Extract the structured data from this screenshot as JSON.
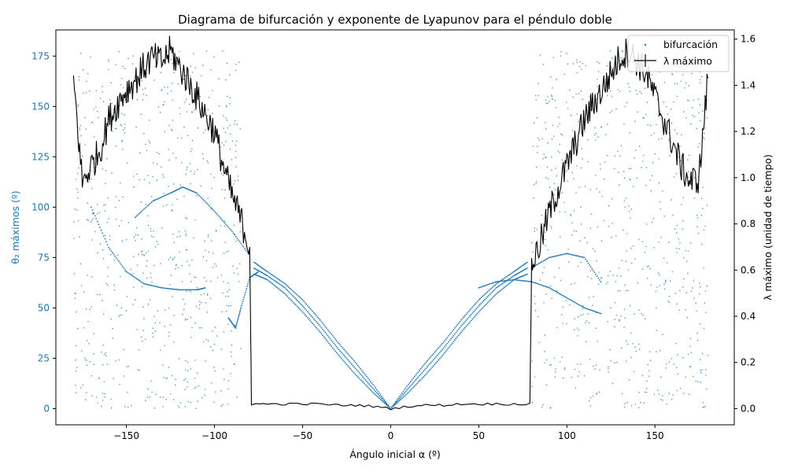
{
  "chart_data": {
    "type": "scatter",
    "title": "Diagrama de bifurcación y exponente de Lyapunov para el péndulo doble",
    "xlabel": "Ángulo inicial α (º)",
    "ylabel_left": "θ₂ máximos (º)",
    "ylabel_right": "λ máximo (unidad de tiempo)",
    "xlim": [
      -190,
      195
    ],
    "ylim_left": [
      -8,
      188
    ],
    "ylim_right": [
      -0.07,
      1.64
    ],
    "xticks": [
      -150,
      -100,
      -50,
      0,
      50,
      100,
      150
    ],
    "yticks_left": [
      0,
      25,
      50,
      75,
      100,
      125,
      150,
      175
    ],
    "yticks_right": [
      0.0,
      0.2,
      0.4,
      0.6,
      0.8,
      1.0,
      1.2,
      1.4,
      1.6
    ],
    "grid": false,
    "legend_position": "top-right",
    "colors": {
      "bifurcation": "#1f77b4",
      "lyapunov": "#000000",
      "left_axis": "#1f77b4"
    },
    "series": [
      {
        "name": "bifurcación",
        "kind": "scatter",
        "axis": "left",
        "branches": [
          {
            "x": [
              0,
              10,
              20,
              30,
              40,
              50,
              60,
              70,
              78
            ],
            "y": [
              0,
              8,
              17,
              27,
              38,
              48,
              57,
              64,
              67
            ]
          },
          {
            "x": [
              0,
              10,
              20,
              30,
              40,
              50,
              60,
              70,
              78
            ],
            "y": [
              0,
              10,
              20,
              30,
              41,
              51,
              60,
              66,
              70
            ]
          },
          {
            "x": [
              0,
              10,
              20,
              30,
              40,
              50,
              60,
              70,
              78
            ],
            "y": [
              0,
              12,
              23,
              33,
              44,
              54,
              62,
              68,
              73
            ]
          },
          {
            "x": [
              0,
              -10,
              -20,
              -30,
              -40,
              -50,
              -60,
              -70,
              -78
            ],
            "y": [
              0,
              8,
              17,
              27,
              38,
              48,
              57,
              64,
              67
            ]
          },
          {
            "x": [
              0,
              -10,
              -20,
              -30,
              -40,
              -50,
              -60,
              -70,
              -78
            ],
            "y": [
              0,
              10,
              20,
              30,
              41,
              51,
              60,
              66,
              70
            ]
          },
          {
            "x": [
              0,
              -10,
              -20,
              -30,
              -40,
              -50,
              -60,
              -70,
              -78
            ],
            "y": [
              0,
              12,
              23,
              33,
              44,
              54,
              62,
              68,
              73
            ]
          },
          {
            "x": [
              50,
              60,
              70,
              80,
              90,
              100,
              110,
              120
            ],
            "y": [
              60,
              63,
              64,
              63,
              60,
              55,
              50,
              47
            ]
          },
          {
            "x": [
              80,
              90,
              100,
              110,
              120
            ],
            "y": [
              70,
              75,
              77,
              75,
              62
            ]
          },
          {
            "x": [
              -145,
              -135,
              -125,
              -118,
              -110,
              -100,
              -90,
              -80
            ],
            "y": [
              95,
              103,
              107,
              110,
              107,
              98,
              88,
              76
            ]
          },
          {
            "x": [
              -170,
              -160,
              -150,
              -140,
              -130,
              -120,
              -110,
              -105
            ],
            "y": [
              100,
              80,
              68,
              62,
              60,
              59,
              59,
              60
            ]
          },
          {
            "x": [
              -92,
              -88,
              -85,
              -80,
              -75
            ],
            "y": [
              45,
              40,
              50,
              65,
              68
            ]
          }
        ],
        "scatter_regions": [
          {
            "x_range": [
              -180,
              -85
            ],
            "y_range": [
              0,
              178
            ],
            "count": 700
          },
          {
            "x_range": [
              80,
              180
            ],
            "y_range": [
              0,
              178
            ],
            "count": 700
          }
        ]
      },
      {
        "name": "λ máximo",
        "kind": "line",
        "axis": "right",
        "x": [
          -180,
          -175,
          -170,
          -165,
          -160,
          -155,
          -150,
          -145,
          -140,
          -135,
          -130,
          -125,
          -120,
          -115,
          -110,
          -105,
          -100,
          -95,
          -90,
          -85,
          -80,
          -79,
          -70,
          -60,
          -50,
          -40,
          -30,
          -20,
          -10,
          0,
          10,
          20,
          30,
          40,
          50,
          60,
          70,
          79,
          80,
          85,
          90,
          95,
          100,
          105,
          110,
          115,
          120,
          125,
          130,
          135,
          140,
          145,
          150,
          155,
          160,
          165,
          170,
          175,
          180
        ],
        "y": [
          1.43,
          0.98,
          1.05,
          1.12,
          1.25,
          1.32,
          1.38,
          1.42,
          1.48,
          1.52,
          1.5,
          1.55,
          1.48,
          1.42,
          1.35,
          1.27,
          1.2,
          1.05,
          0.92,
          0.82,
          0.7,
          0.02,
          0.02,
          0.02,
          0.02,
          0.02,
          0.015,
          0.015,
          0.01,
          0.0,
          0.01,
          0.015,
          0.015,
          0.02,
          0.02,
          0.02,
          0.02,
          0.02,
          0.62,
          0.72,
          0.85,
          0.95,
          1.05,
          1.15,
          1.25,
          1.32,
          1.38,
          1.45,
          1.52,
          1.55,
          1.5,
          1.45,
          1.35,
          1.25,
          1.15,
          1.05,
          0.98,
          1.0,
          1.43
        ]
      }
    ]
  }
}
